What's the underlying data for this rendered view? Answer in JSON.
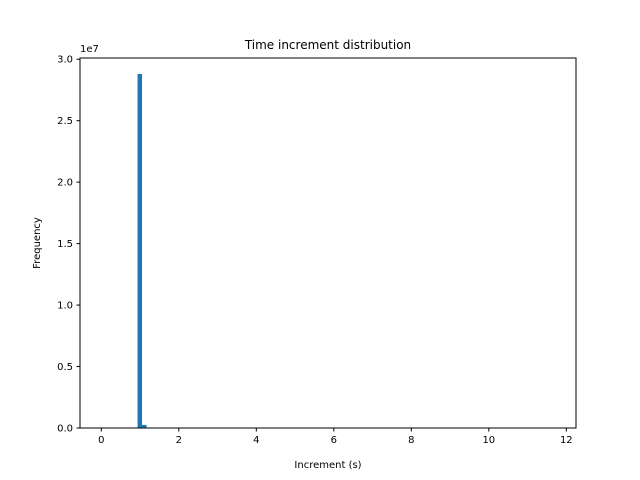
{
  "chart_data": {
    "type": "bar",
    "title": "Time increment distribution",
    "xlabel": "Increment (s)",
    "ylabel": "Frequency",
    "y_offset_label": "1e7",
    "xlim": [
      -0.55,
      12.25
    ],
    "ylim": [
      0,
      30100000
    ],
    "x_ticks": [
      0,
      2,
      4,
      6,
      8,
      10,
      12
    ],
    "x_tick_labels": [
      "0",
      "2",
      "4",
      "6",
      "8",
      "10",
      "12"
    ],
    "y_ticks": [
      0,
      5000000,
      10000000,
      15000000,
      20000000,
      25000000,
      30000000
    ],
    "y_tick_labels": [
      "0.0",
      "0.5",
      "1.0",
      "1.5",
      "2.0",
      "2.5",
      "3.0"
    ],
    "bar_width": 0.116,
    "bar_color": "#1f77b4",
    "bins": [
      {
        "x": 0.935,
        "value": 28800000
      },
      {
        "x": 1.051,
        "value": 250000
      },
      {
        "x": 1.167,
        "value": 8000
      }
    ],
    "grid": false,
    "legend": "none"
  }
}
